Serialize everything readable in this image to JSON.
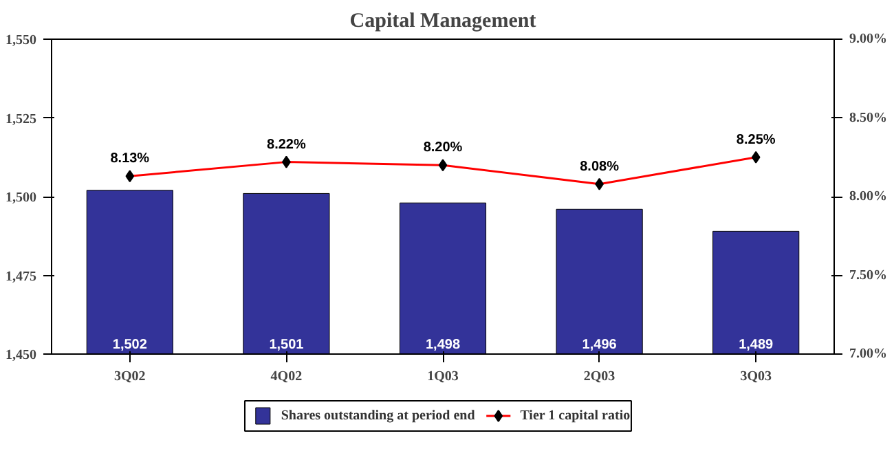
{
  "chart_data": {
    "type": "bar",
    "title": "Capital Management",
    "categories": [
      "3Q02",
      "4Q02",
      "1Q03",
      "2Q03",
      "3Q03"
    ],
    "series": [
      {
        "name": "Shares outstanding at period end",
        "color": "#333399",
        "values": [
          1502,
          1501,
          1498,
          1496,
          1489
        ],
        "value_labels": [
          "1,502",
          "1,501",
          "1,498",
          "1,496",
          "1,489"
        ]
      },
      {
        "name": "Tier 1 capital ratio",
        "type": "line",
        "axis": "y2",
        "color": "#ff0000",
        "marker": "diamond",
        "values": [
          8.13,
          8.22,
          8.2,
          8.08,
          8.25
        ],
        "value_labels": [
          "8.13%",
          "8.22%",
          "8.20%",
          "8.08%",
          "8.25%"
        ]
      }
    ],
    "ylim": [
      1450,
      1550
    ],
    "yticks": [
      {
        "value": 1450,
        "label": "1,450"
      },
      {
        "value": 1475,
        "label": "1,475"
      },
      {
        "value": 1500,
        "label": "1,500"
      },
      {
        "value": 1525,
        "label": "1,525"
      },
      {
        "value": 1550,
        "label": "1,550"
      }
    ],
    "y2lim": [
      7,
      9
    ],
    "y2ticks": [
      {
        "value": 7,
        "label": "7.00%"
      },
      {
        "value": 7.5,
        "label": "7.50%"
      },
      {
        "value": 8,
        "label": "8.00%"
      },
      {
        "value": 8.5,
        "label": "8.50%"
      },
      {
        "value": 9,
        "label": "9.00%"
      }
    ],
    "legend": "bottom"
  }
}
